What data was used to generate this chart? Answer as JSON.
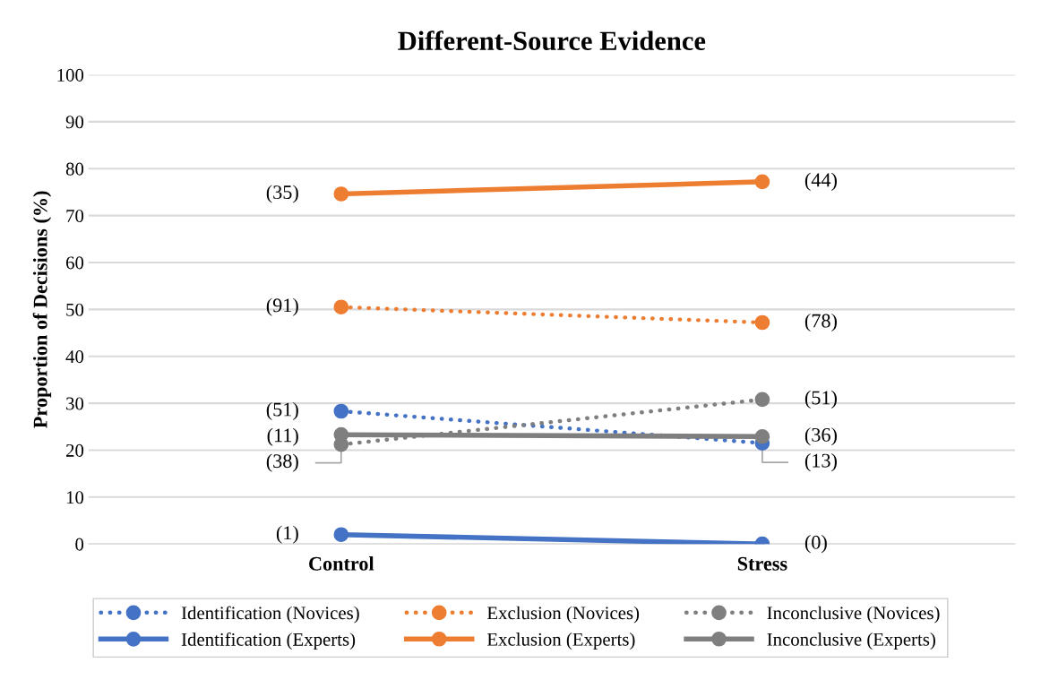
{
  "chart_data": {
    "type": "line",
    "title": "Different-Source Evidence",
    "ylabel": "Proportion of Decisions (%)",
    "categories": [
      "Control",
      "Stress"
    ],
    "series": [
      {
        "name": "Identification (Novices)",
        "color": "#4472c4",
        "line_style": "dotted",
        "values": [
          28.3,
          21.5
        ]
      },
      {
        "name": "Exclusion (Novices)",
        "color": "#ed7d31",
        "line_style": "dotted",
        "values": [
          50.5,
          47.2
        ]
      },
      {
        "name": "Inconclusive (Novices)",
        "color": "#7f7f7f",
        "line_style": "dotted",
        "values": [
          21.2,
          30.8
        ]
      },
      {
        "name": "Identification (Experts)",
        "color": "#4472c4",
        "line_style": "solid",
        "values": [
          2.0,
          0
        ]
      },
      {
        "name": "Exclusion (Experts)",
        "color": "#ed7d31",
        "line_style": "solid",
        "values": [
          74.6,
          77.2
        ]
      },
      {
        "name": "Inconclusive (Experts)",
        "color": "#7f7f7f",
        "line_style": "solid",
        "values": [
          23.3,
          22.9
        ]
      }
    ],
    "annotations": [
      {
        "text": "(51)",
        "x": "Control",
        "y": 28.3
      },
      {
        "text": "(13)",
        "x": "Stress",
        "y": 21.5
      },
      {
        "text": "(91)",
        "x": "Control",
        "y": 50.5
      },
      {
        "text": "(78)",
        "x": "Stress",
        "y": 47.2
      },
      {
        "text": "(38)",
        "x": "Control",
        "y": 21.2
      },
      {
        "text": "(51)",
        "x": "Stress",
        "y": 30.8
      },
      {
        "text": "(1)",
        "x": "Control",
        "y": 2.0
      },
      {
        "text": "(0)",
        "x": "Stress",
        "y": 0
      },
      {
        "text": "(35)",
        "x": "Control",
        "y": 74.6
      },
      {
        "text": "(44)",
        "x": "Stress",
        "y": 77.2
      },
      {
        "text": "(11)",
        "x": "Control",
        "y": 23.3
      },
      {
        "text": "(36)",
        "x": "Stress",
        "y": 22.9
      }
    ],
    "ylim": [
      0,
      100
    ],
    "yticks": [
      0,
      10,
      20,
      30,
      40,
      50,
      60,
      70,
      80,
      90,
      100
    ],
    "grid": "y",
    "legend": "bottom",
    "marker": "circle"
  }
}
